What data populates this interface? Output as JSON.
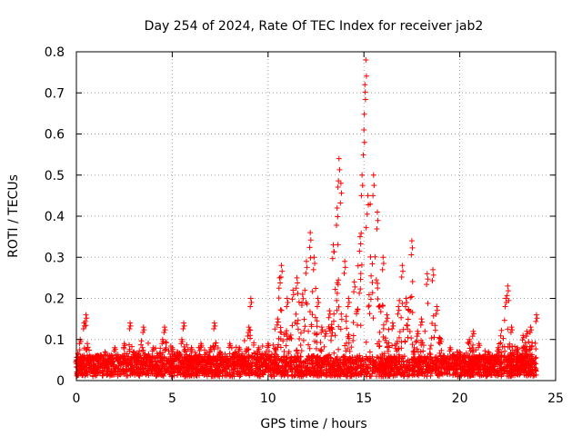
{
  "chart_data": {
    "type": "scatter",
    "title": "Day 254 of 2024, Rate Of TEC Index for receiver jab2",
    "xlabel": "GPS time / hours",
    "ylabel": "ROTI / TECUs",
    "xlim": [
      0,
      25
    ],
    "ylim": [
      0,
      0.8
    ],
    "xticks": [
      0,
      5,
      10,
      15,
      20,
      25
    ],
    "yticks": [
      0,
      0.1,
      0.2,
      0.3,
      0.4,
      0.5,
      0.6,
      0.7,
      0.8
    ],
    "ytick_labels": [
      "0",
      "0.1",
      "0.2",
      "0.3",
      "0.4",
      "0.5",
      "0.6",
      "0.7",
      "0.8"
    ],
    "grid": true,
    "marker": "+",
    "color": "#ff0000",
    "series_envelope": {
      "description_hours": [
        0,
        24
      ],
      "points": [
        [
          0.0,
          0.05
        ],
        [
          0.2,
          0.1
        ],
        [
          0.4,
          0.14
        ],
        [
          0.5,
          0.16
        ],
        [
          0.7,
          0.06
        ],
        [
          1.0,
          0.06
        ],
        [
          1.5,
          0.07
        ],
        [
          2.0,
          0.08
        ],
        [
          2.5,
          0.09
        ],
        [
          2.8,
          0.14
        ],
        [
          3.0,
          0.07
        ],
        [
          3.5,
          0.13
        ],
        [
          4.0,
          0.08
        ],
        [
          4.5,
          0.1
        ],
        [
          4.6,
          0.13
        ],
        [
          5.0,
          0.08
        ],
        [
          5.5,
          0.1
        ],
        [
          5.6,
          0.14
        ],
        [
          6.0,
          0.08
        ],
        [
          6.5,
          0.09
        ],
        [
          7.0,
          0.08
        ],
        [
          7.2,
          0.14
        ],
        [
          7.5,
          0.07
        ],
        [
          8.0,
          0.09
        ],
        [
          8.5,
          0.08
        ],
        [
          9.0,
          0.13
        ],
        [
          9.1,
          0.2
        ],
        [
          9.5,
          0.08
        ],
        [
          10.0,
          0.09
        ],
        [
          10.5,
          0.15
        ],
        [
          10.6,
          0.25
        ],
        [
          10.7,
          0.28
        ],
        [
          11.0,
          0.2
        ],
        [
          11.3,
          0.22
        ],
        [
          11.5,
          0.25
        ],
        [
          11.8,
          0.21
        ],
        [
          12.0,
          0.29
        ],
        [
          12.2,
          0.36
        ],
        [
          12.4,
          0.3
        ],
        [
          12.6,
          0.2
        ],
        [
          12.8,
          0.13
        ],
        [
          13.0,
          0.12
        ],
        [
          13.2,
          0.17
        ],
        [
          13.4,
          0.33
        ],
        [
          13.6,
          0.42
        ],
        [
          13.7,
          0.54
        ],
        [
          13.8,
          0.48
        ],
        [
          14.0,
          0.29
        ],
        [
          14.2,
          0.2
        ],
        [
          14.5,
          0.24
        ],
        [
          14.8,
          0.35
        ],
        [
          14.9,
          0.5
        ],
        [
          15.0,
          0.61
        ],
        [
          15.05,
          0.72
        ],
        [
          15.1,
          0.78
        ],
        [
          15.2,
          0.45
        ],
        [
          15.5,
          0.5
        ],
        [
          15.7,
          0.41
        ],
        [
          16.0,
          0.3
        ],
        [
          16.2,
          0.16
        ],
        [
          16.5,
          0.14
        ],
        [
          16.8,
          0.18
        ],
        [
          17.0,
          0.28
        ],
        [
          17.2,
          0.2
        ],
        [
          17.5,
          0.34
        ],
        [
          17.8,
          0.12
        ],
        [
          18.0,
          0.15
        ],
        [
          18.3,
          0.26
        ],
        [
          18.6,
          0.27
        ],
        [
          18.8,
          0.18
        ],
        [
          19.0,
          0.1
        ],
        [
          19.5,
          0.08
        ],
        [
          20.0,
          0.07
        ],
        [
          20.5,
          0.1
        ],
        [
          20.7,
          0.12
        ],
        [
          21.0,
          0.09
        ],
        [
          21.5,
          0.07
        ],
        [
          22.0,
          0.08
        ],
        [
          22.4,
          0.2
        ],
        [
          22.5,
          0.23
        ],
        [
          22.7,
          0.13
        ],
        [
          23.0,
          0.08
        ],
        [
          23.3,
          0.11
        ],
        [
          23.5,
          0.12
        ],
        [
          23.7,
          0.13
        ],
        [
          24.0,
          0.16
        ]
      ]
    }
  }
}
